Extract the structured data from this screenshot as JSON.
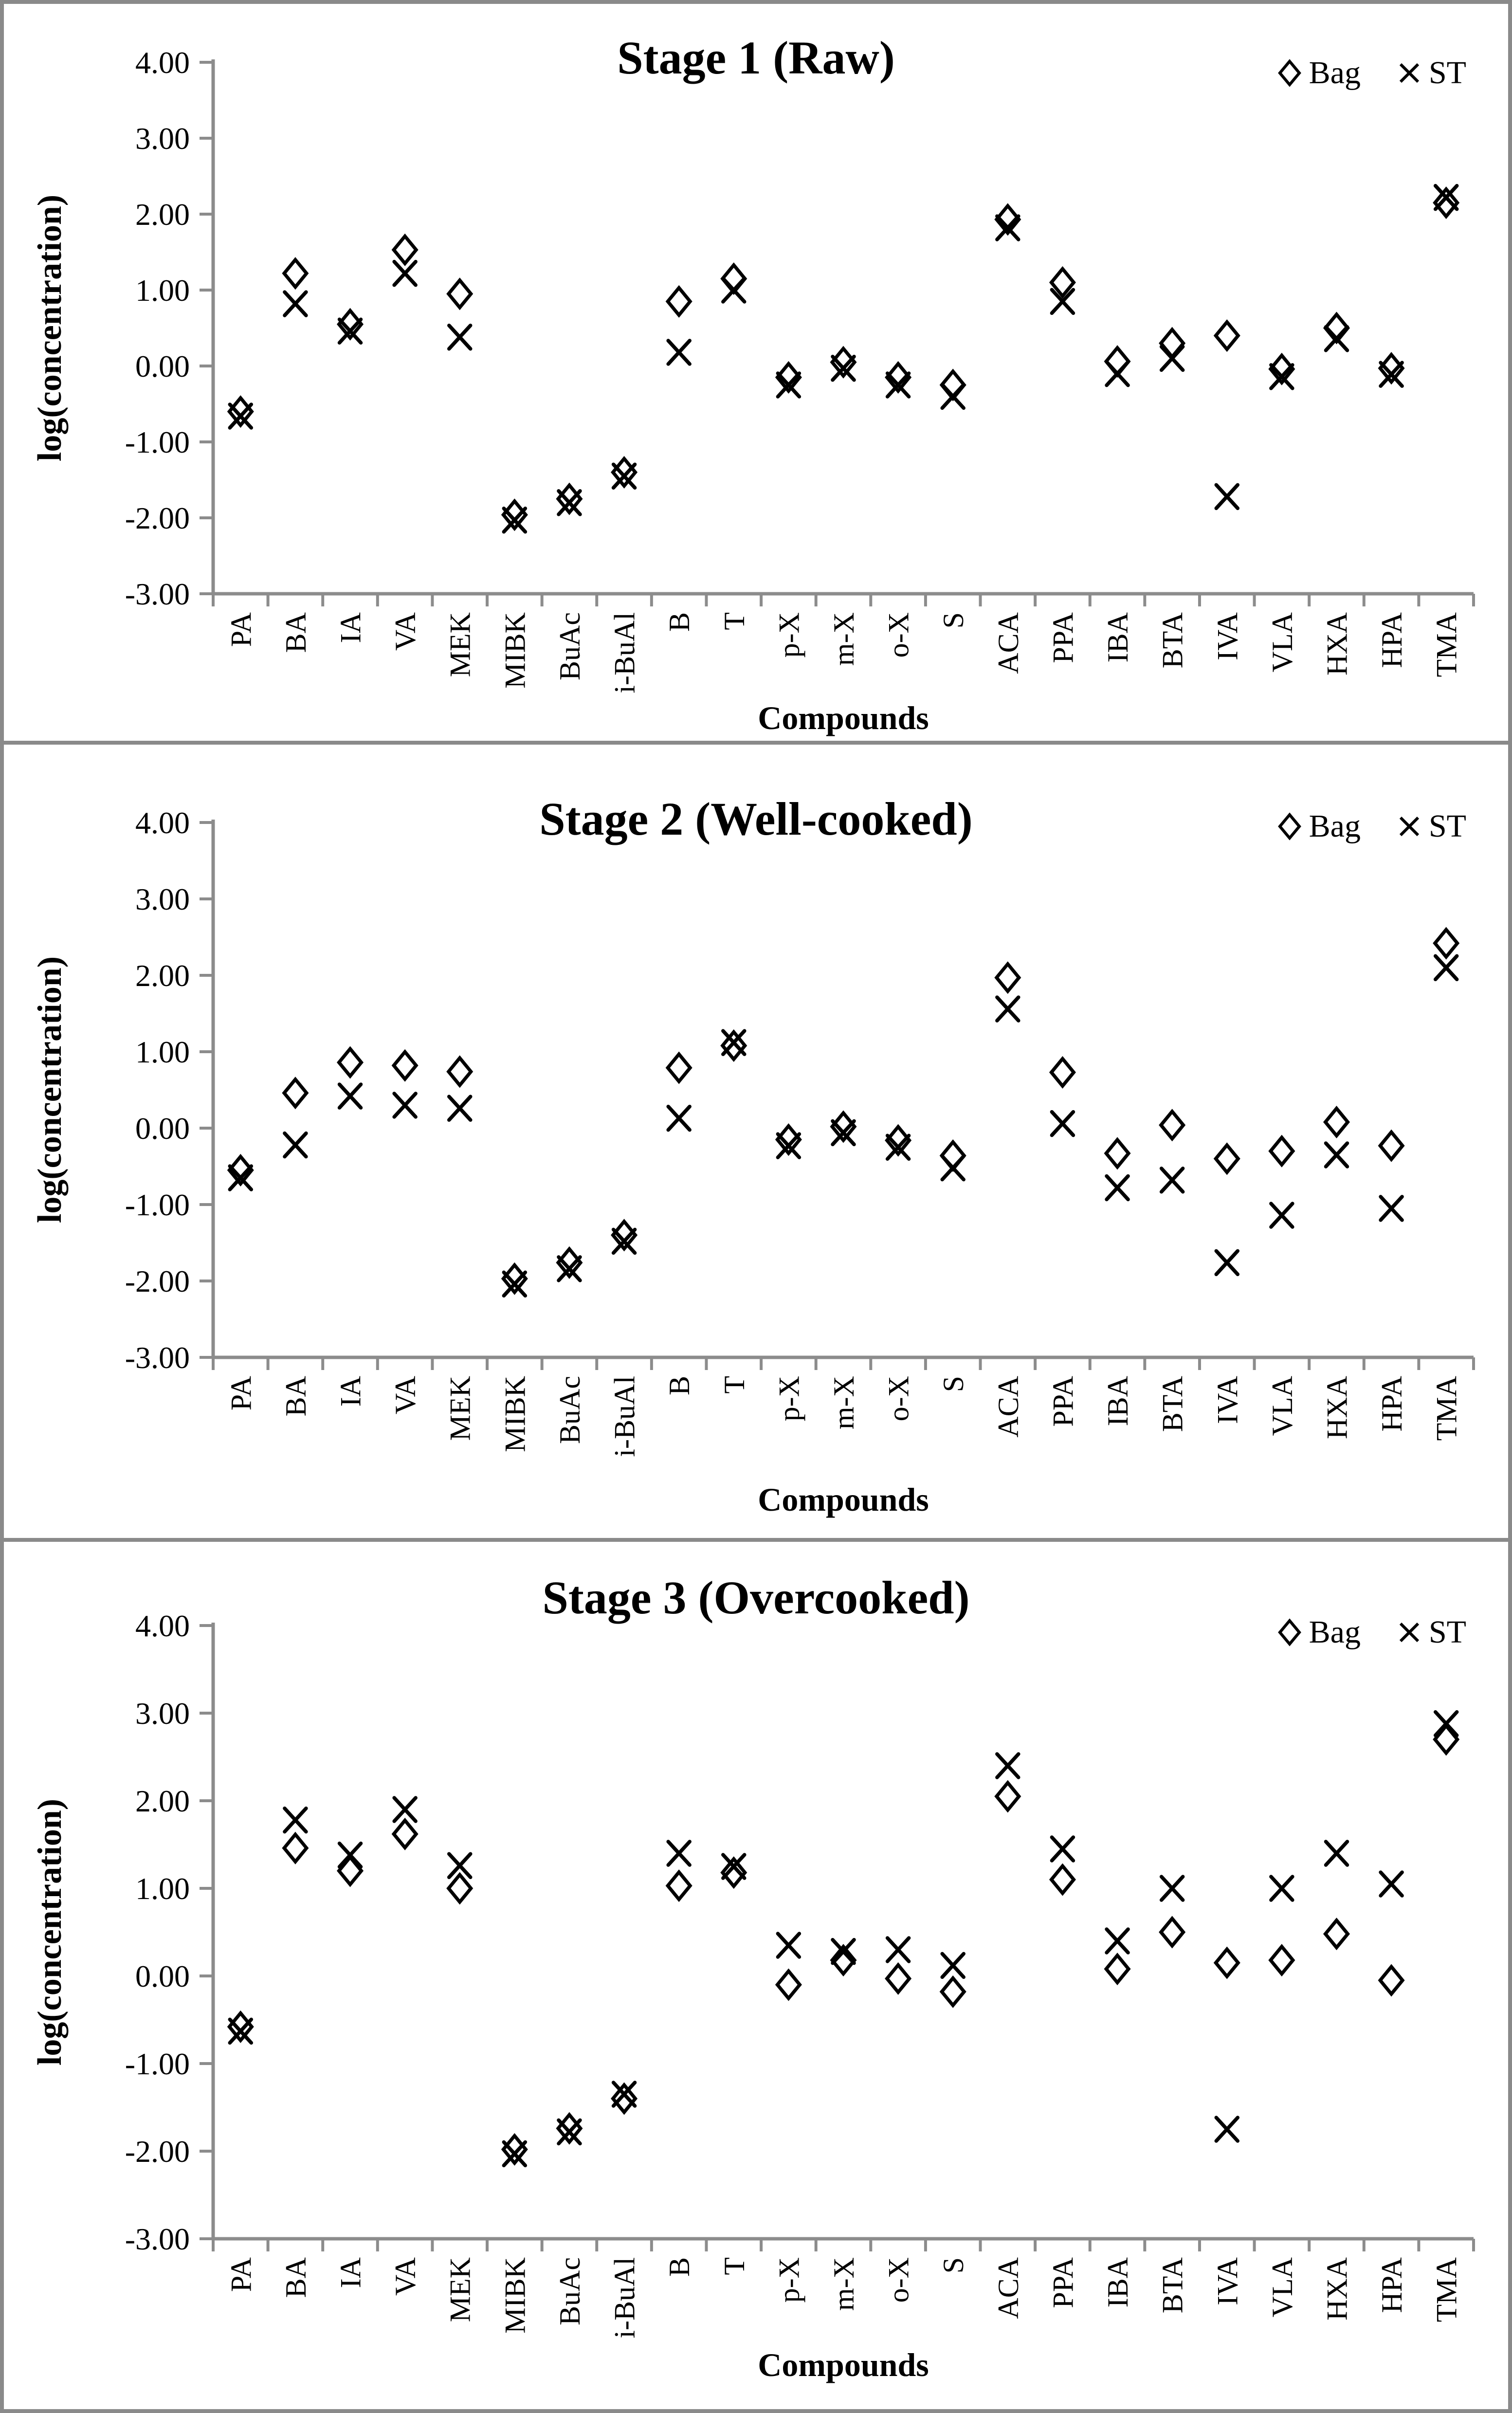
{
  "figure": {
    "ylabel": "log(concentration)",
    "xlabel": "Compounds",
    "legend": {
      "bag": "Bag",
      "st": "ST"
    },
    "y_ticks": [
      "4.00",
      "3.00",
      "2.00",
      "1.00",
      "0.00",
      "-1.00",
      "-2.00",
      "-3.00"
    ],
    "colors": {
      "marker": "#000000",
      "axis": "#8c8c8c",
      "border": "#8a8a8a",
      "text": "#000000"
    }
  },
  "chart_data": [
    {
      "type": "scatter",
      "title": "Stage 1 (Raw)",
      "xlabel": "Compounds",
      "ylabel": "log(concentration)",
      "ylim": [
        -3,
        4
      ],
      "grid": false,
      "legend_position": "top-right",
      "categories": [
        "PA",
        "BA",
        "IA",
        "VA",
        "MEK",
        "MIBK",
        "BuAc",
        "i-BuAl",
        "B",
        "T",
        "p-X",
        "m-X",
        "o-X",
        "S",
        "ACA",
        "PPA",
        "IBA",
        "BTA",
        "IVA",
        "VLA",
        "HXA",
        "HPA",
        "TMA"
      ],
      "series": [
        {
          "name": "Bag",
          "marker": "diamond",
          "values": [
            -0.6,
            1.22,
            0.55,
            1.53,
            0.95,
            -1.96,
            -1.75,
            -1.4,
            0.85,
            1.15,
            -0.15,
            0.05,
            -0.15,
            -0.25,
            1.93,
            1.1,
            0.06,
            0.3,
            0.4,
            -0.04,
            0.5,
            -0.03,
            2.15
          ]
        },
        {
          "name": "ST",
          "marker": "x",
          "values": [
            -0.66,
            0.82,
            0.46,
            1.22,
            0.38,
            -2.03,
            -1.8,
            -1.45,
            0.18,
            1.0,
            -0.25,
            -0.03,
            -0.25,
            -0.4,
            1.82,
            0.85,
            -0.1,
            0.1,
            -1.72,
            -0.14,
            0.36,
            -0.11,
            2.22
          ]
        }
      ]
    },
    {
      "type": "scatter",
      "title": "Stage 2 (Well-cooked)",
      "xlabel": "Compounds",
      "ylabel": "log(concentration)",
      "ylim": [
        -3,
        4
      ],
      "grid": false,
      "legend_position": "top-right",
      "categories": [
        "PA",
        "BA",
        "IA",
        "VA",
        "MEK",
        "MIBK",
        "BuAc",
        "i-BuAl",
        "B",
        "T",
        "p-X",
        "m-X",
        "o-X",
        "S",
        "ACA",
        "PPA",
        "IBA",
        "BTA",
        "IVA",
        "VLA",
        "HXA",
        "HPA",
        "TMA"
      ],
      "series": [
        {
          "name": "Bag",
          "marker": "diamond",
          "values": [
            -0.55,
            0.46,
            0.86,
            0.82,
            0.74,
            -1.97,
            -1.76,
            -1.4,
            0.79,
            1.08,
            -0.15,
            0.02,
            -0.16,
            -0.36,
            1.97,
            0.73,
            -0.33,
            0.04,
            -0.4,
            -0.3,
            0.08,
            -0.23,
            2.42
          ]
        },
        {
          "name": "ST",
          "marker": "x",
          "values": [
            -0.65,
            -0.22,
            0.42,
            0.3,
            0.26,
            -2.04,
            -1.84,
            -1.48,
            0.13,
            1.12,
            -0.23,
            -0.06,
            -0.25,
            -0.52,
            1.56,
            0.06,
            -0.78,
            -0.68,
            -1.76,
            -1.14,
            -0.35,
            -1.05,
            2.1
          ]
        }
      ]
    },
    {
      "type": "scatter",
      "title": "Stage 3 (Overcooked)",
      "xlabel": "Compounds",
      "ylabel": "log(concentration)",
      "ylim": [
        -3,
        4
      ],
      "grid": false,
      "legend_position": "top-right",
      "categories": [
        "PA",
        "BA",
        "IA",
        "VA",
        "MEK",
        "MIBK",
        "BuAc",
        "i-BuAl",
        "B",
        "T",
        "p-X",
        "m-X",
        "o-X",
        "S",
        "ACA",
        "PPA",
        "IBA",
        "BTA",
        "IVA",
        "VLA",
        "HXA",
        "HPA",
        "TMA"
      ],
      "series": [
        {
          "name": "Bag",
          "marker": "diamond",
          "values": [
            -0.58,
            1.46,
            1.2,
            1.62,
            1.0,
            -1.98,
            -1.74,
            -1.4,
            1.03,
            1.18,
            -0.1,
            0.18,
            -0.03,
            -0.18,
            2.05,
            1.1,
            0.08,
            0.5,
            0.15,
            0.18,
            0.48,
            -0.05,
            2.7
          ]
        },
        {
          "name": "ST",
          "marker": "x",
          "values": [
            -0.63,
            1.78,
            1.38,
            1.9,
            1.26,
            -2.03,
            -1.78,
            -1.35,
            1.4,
            1.25,
            0.35,
            0.28,
            0.3,
            0.12,
            2.4,
            1.45,
            0.4,
            1.0,
            -1.75,
            1.0,
            1.4,
            1.05,
            2.88
          ]
        }
      ]
    }
  ]
}
